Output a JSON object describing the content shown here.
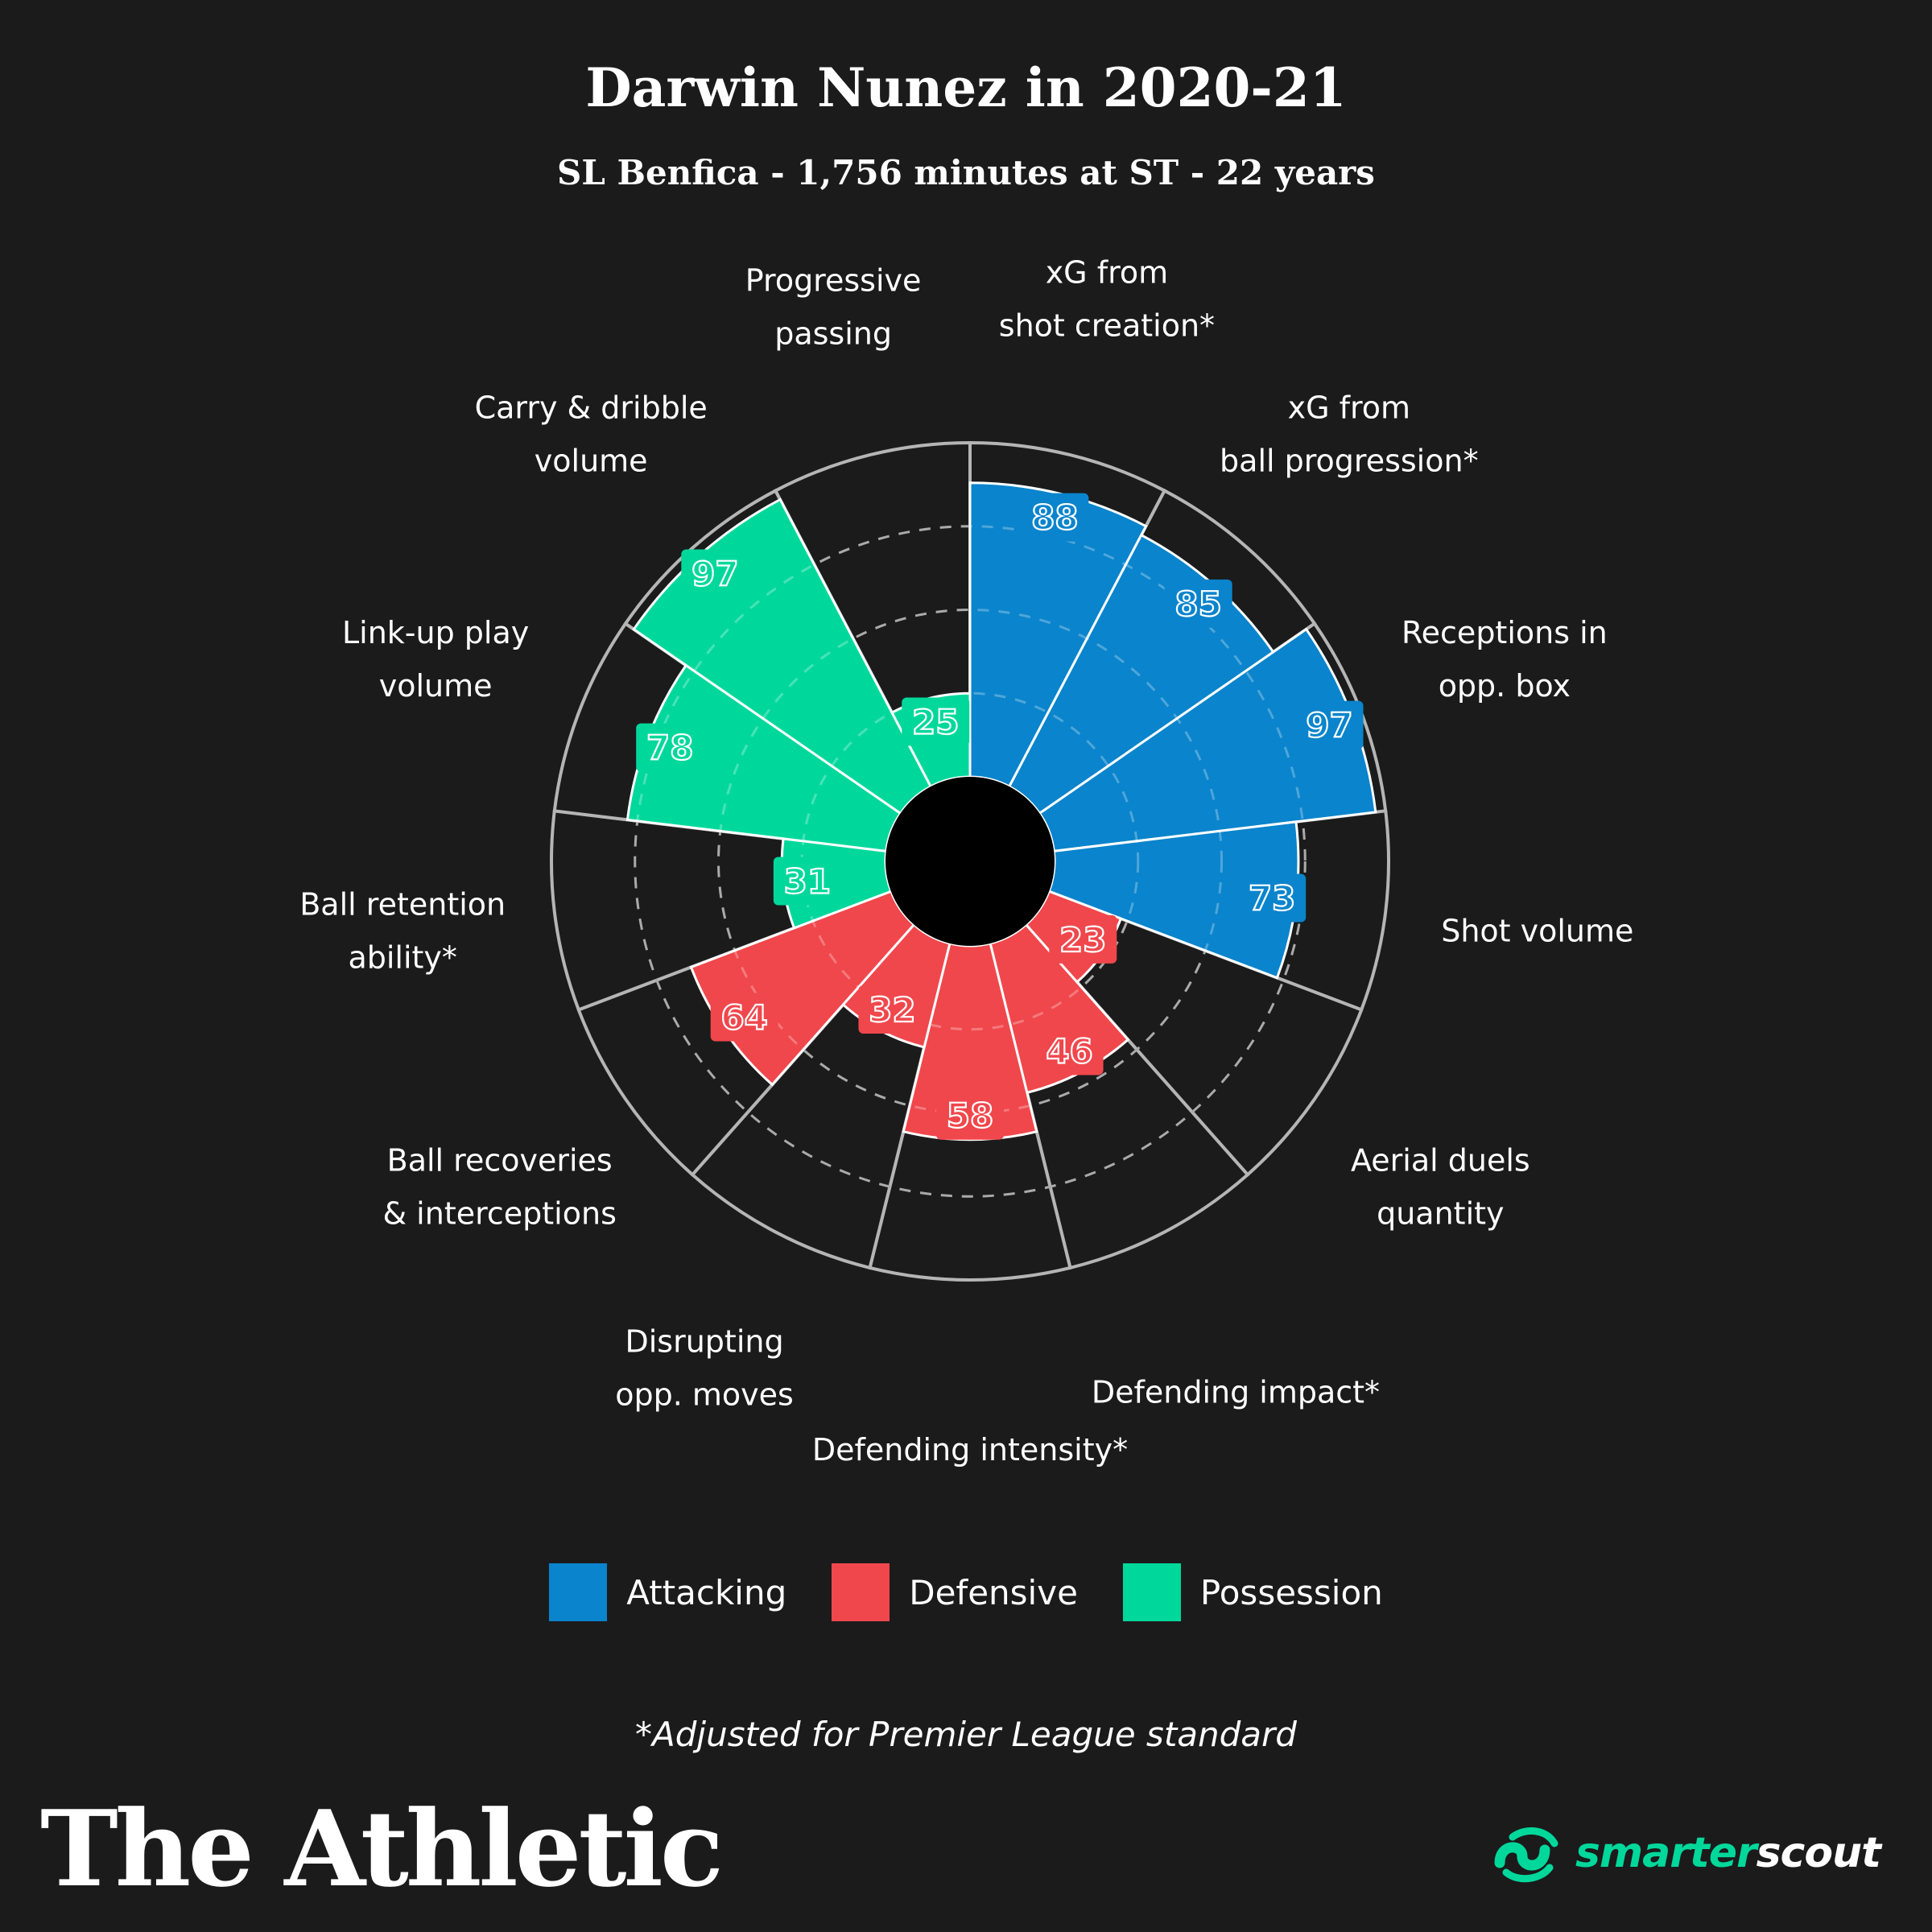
{
  "header": {
    "title": "Darwin Nunez in 2020-21",
    "subtitle": "SL Benfica - 1,756 minutes at ST - 22 years"
  },
  "chart_data": {
    "type": "polar-bar",
    "title": "Darwin Nunez in 2020-21",
    "subtitle": "SL Benfica - 1,756 minutes at ST - 22 years",
    "rlim": [
      0,
      100
    ],
    "grid": true,
    "legend_position": "bottom",
    "categories": [
      {
        "label": [
          "xG from",
          "shot creation*"
        ],
        "value": 88,
        "group": "Attacking"
      },
      {
        "label": [
          "xG from",
          "ball progression*"
        ],
        "value": 85,
        "group": "Attacking"
      },
      {
        "label": [
          "Receptions in",
          "opp. box"
        ],
        "value": 97,
        "group": "Attacking"
      },
      {
        "label": [
          "Shot volume"
        ],
        "value": 73,
        "group": "Attacking"
      },
      {
        "label": [
          "Aerial duels",
          "quantity"
        ],
        "value": 23,
        "group": "Defensive"
      },
      {
        "label": [
          "Defending impact*"
        ],
        "value": 46,
        "group": "Defensive"
      },
      {
        "label": [
          "Defending intensity*"
        ],
        "value": 58,
        "group": "Defensive"
      },
      {
        "label": [
          "Disrupting",
          "opp. moves"
        ],
        "value": 32,
        "group": "Defensive"
      },
      {
        "label": [
          "Ball recoveries",
          "& interceptions"
        ],
        "value": 64,
        "group": "Defensive"
      },
      {
        "label": [
          "Ball retention",
          "ability*"
        ],
        "value": 31,
        "group": "Possession"
      },
      {
        "label": [
          "Link-up play",
          "volume"
        ],
        "value": 78,
        "group": "Possession"
      },
      {
        "label": [
          "Carry & dribble",
          "volume"
        ],
        "value": 97,
        "group": "Possession"
      },
      {
        "label": [
          "Progressive",
          "passing"
        ],
        "value": 25,
        "group": "Possession"
      }
    ],
    "groups": [
      {
        "name": "Attacking",
        "color": "#0a84cc"
      },
      {
        "name": "Defensive",
        "color": "#f0474c"
      },
      {
        "name": "Possession",
        "color": "#00d89b"
      }
    ]
  },
  "legend": [
    {
      "label": "Attacking",
      "color": "#0a84cc"
    },
    {
      "label": "Defensive",
      "color": "#f0474c"
    },
    {
      "label": "Possession",
      "color": "#00d89b"
    }
  ],
  "footnote": "*Adjusted for Premier League standard",
  "branding": {
    "left": "The Athletic",
    "right_part1": "smarter",
    "right_part2": "scout"
  }
}
